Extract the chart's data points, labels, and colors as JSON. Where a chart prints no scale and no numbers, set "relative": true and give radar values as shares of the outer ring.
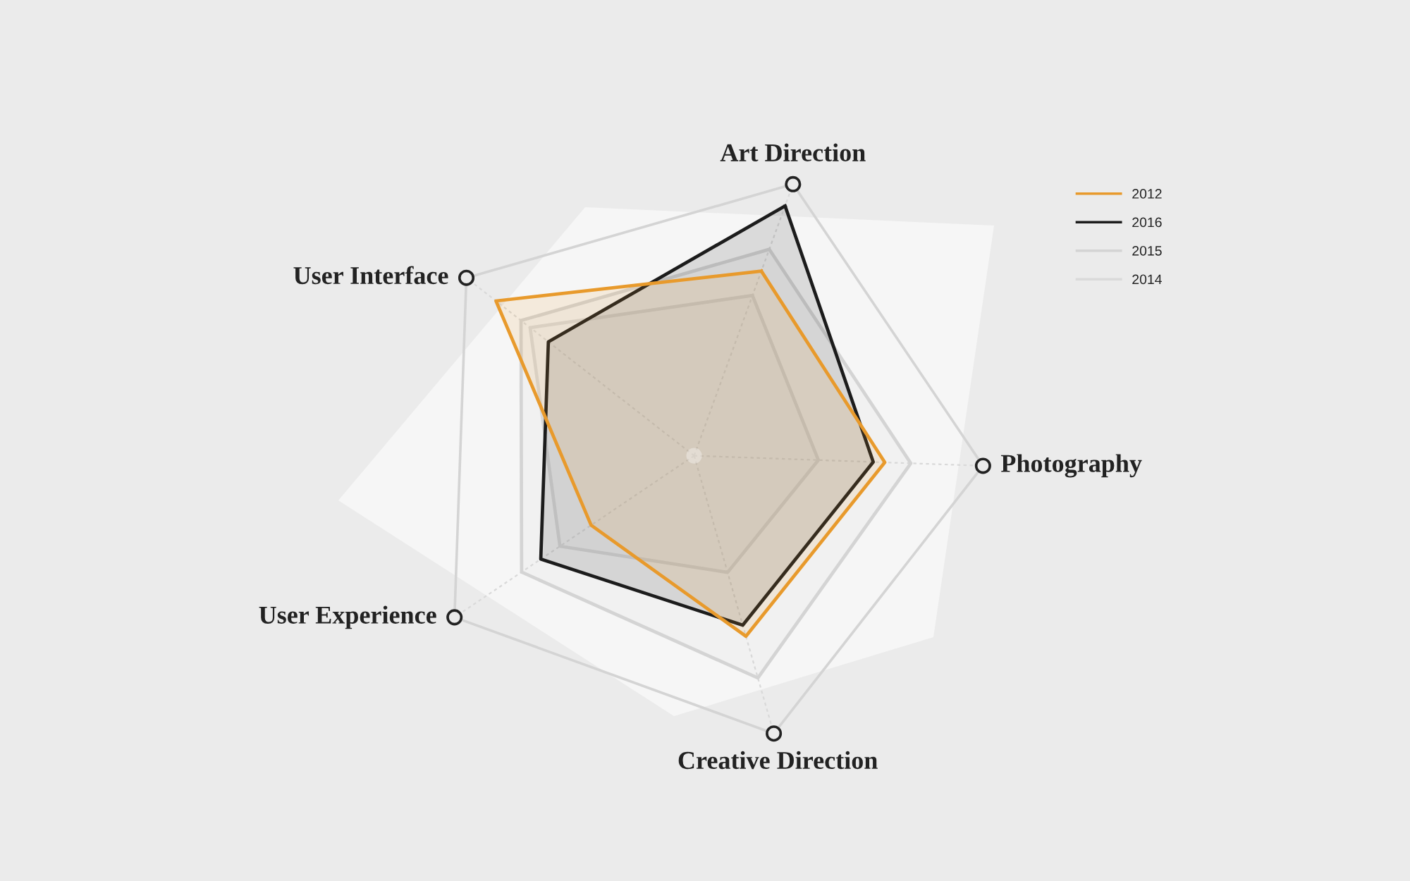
{
  "chart_data": {
    "type": "radar",
    "relative": true,
    "categories": [
      "Art Direction",
      "Photography",
      "Creative Direction",
      "User Experience",
      "User Interface"
    ],
    "series": [
      {
        "name": "2012",
        "color": "#e89a2c",
        "values": [
          0.68,
          0.66,
          0.65,
          0.43,
          0.87
        ]
      },
      {
        "name": "2016",
        "color": "#1c1c1c",
        "values": [
          0.92,
          0.62,
          0.61,
          0.64,
          0.64
        ]
      },
      {
        "name": "2015",
        "color": "#d4d4d4",
        "values": [
          0.76,
          0.75,
          0.8,
          0.72,
          0.76
        ]
      },
      {
        "name": "2014",
        "color": "#dadada",
        "values": [
          0.59,
          0.43,
          0.42,
          0.56,
          0.72
        ]
      }
    ],
    "grid": true,
    "legend": "top right"
  }
}
